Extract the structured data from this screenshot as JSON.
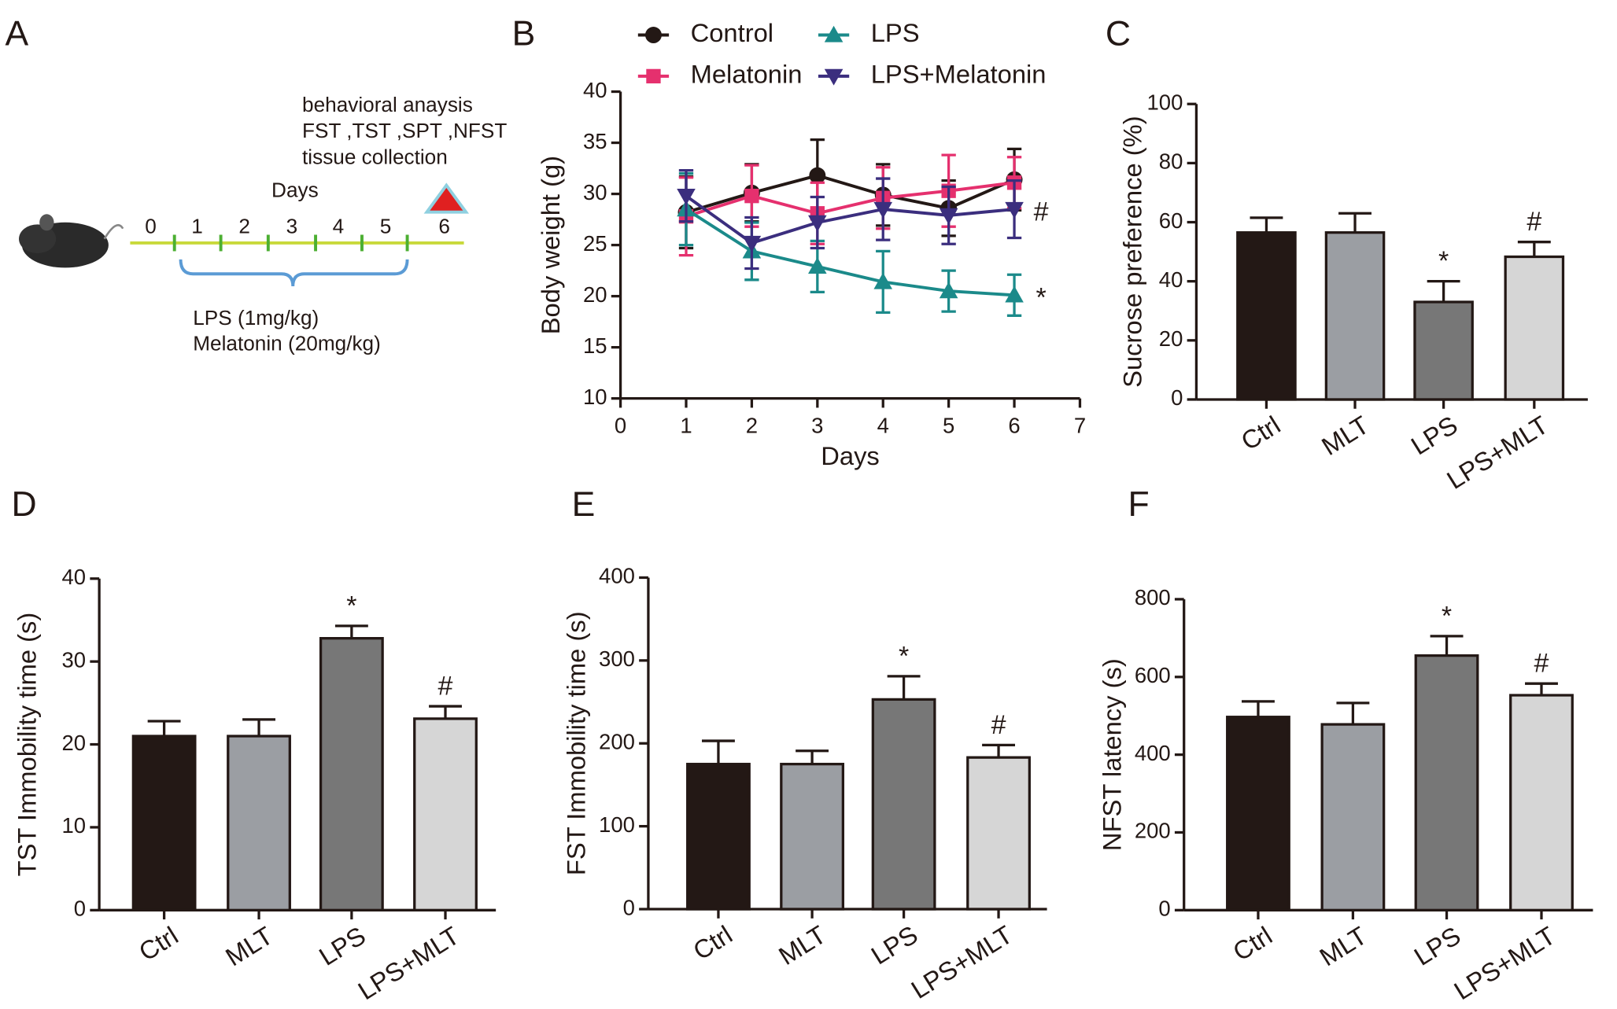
{
  "schematic": {
    "panel": "A",
    "notes": [
      "behavioral anaysis",
      "FST ,TST ,SPT ,NFST",
      "tissue collection"
    ],
    "axis_label": "Days",
    "day_ticks": [
      0,
      1,
      2,
      3,
      4,
      5,
      6
    ],
    "treatment": [
      "LPS (1mg/kg)",
      "Melatonin (20mg/kg)"
    ]
  },
  "chart_data": [
    {
      "type": "line",
      "panel": "B",
      "x_label": "Days",
      "y_label": "Body weight (g)",
      "xlim": [
        0,
        7
      ],
      "xticks": [
        0,
        1,
        2,
        3,
        4,
        5,
        6,
        7
      ],
      "ylim": [
        10,
        40
      ],
      "yticks": [
        10,
        15,
        20,
        25,
        30,
        35,
        40
      ],
      "legend": "top",
      "x": [
        1,
        2,
        3,
        4,
        5,
        6
      ],
      "series": [
        {
          "name": "Control",
          "color": "#231815",
          "marker": "circle",
          "values": [
            28.2,
            30.1,
            31.8,
            29.9,
            28.6,
            31.4
          ],
          "errors": [
            3.5,
            2.8,
            3.5,
            3.0,
            2.7,
            3.0
          ]
        },
        {
          "name": "Melatonin",
          "color": "#e5306e",
          "marker": "square",
          "values": [
            27.8,
            29.8,
            28.1,
            29.6,
            30.3,
            31.1
          ],
          "errors": [
            3.8,
            3.0,
            3.0,
            3.0,
            3.5,
            2.5
          ]
        },
        {
          "name": "LPS",
          "color": "#1b8a8a",
          "marker": "triangle-up",
          "values": [
            28.5,
            24.4,
            22.9,
            21.4,
            20.5,
            20.1
          ],
          "errors": [
            3.5,
            2.8,
            2.5,
            3.0,
            2.0,
            2.0
          ],
          "end_label": "*"
        },
        {
          "name": "LPS+Melatonin",
          "color": "#3b2e7e",
          "marker": "triangle-down",
          "values": [
            29.8,
            25.2,
            27.2,
            28.5,
            27.9,
            28.5
          ],
          "errors": [
            2.5,
            2.5,
            2.5,
            3.0,
            2.8,
            2.8
          ],
          "end_label": "#"
        }
      ]
    },
    {
      "type": "bar",
      "panel": "C",
      "y_label": "Sucrose preference (%)",
      "ylim": [
        0,
        100
      ],
      "yticks": [
        0,
        20,
        40,
        60,
        80,
        100
      ],
      "categories": [
        "Ctrl",
        "MLT",
        "LPS",
        "LPS+MLT"
      ],
      "colors": [
        "#231815",
        "#9b9ea3",
        "#777777",
        "#d6d6d6"
      ],
      "values": [
        56.5,
        56.5,
        33,
        48.3
      ],
      "errors": [
        5,
        6.5,
        7,
        5
      ],
      "marks": [
        null,
        null,
        "*",
        "#"
      ]
    },
    {
      "type": "bar",
      "panel": "D",
      "y_label": "TST Immobility time (s)",
      "ylim": [
        0,
        40
      ],
      "yticks": [
        0,
        10,
        20,
        30,
        40
      ],
      "categories": [
        "Ctrl",
        "MLT",
        "LPS",
        "LPS+MLT"
      ],
      "colors": [
        "#231815",
        "#9b9ea3",
        "#777777",
        "#d6d6d6"
      ],
      "values": [
        21,
        21,
        32.8,
        23.1
      ],
      "errors": [
        1.8,
        2.0,
        1.5,
        1.5
      ],
      "marks": [
        null,
        null,
        "*",
        "#"
      ]
    },
    {
      "type": "bar",
      "panel": "E",
      "y_label": "FST Immobility time (s)",
      "ylim": [
        0,
        400
      ],
      "yticks": [
        0,
        100,
        200,
        300,
        400
      ],
      "categories": [
        "Ctrl",
        "MLT",
        "LPS",
        "LPS+MLT"
      ],
      "colors": [
        "#231815",
        "#9b9ea3",
        "#777777",
        "#d6d6d6"
      ],
      "values": [
        175,
        175,
        253,
        183
      ],
      "errors": [
        28,
        16,
        28,
        15
      ],
      "marks": [
        null,
        null,
        "*",
        "#"
      ]
    },
    {
      "type": "bar",
      "panel": "F",
      "y_label": "NFST latency (s)",
      "ylim": [
        0,
        800
      ],
      "yticks": [
        0,
        200,
        400,
        600,
        800
      ],
      "categories": [
        "Ctrl",
        "MLT",
        "LPS",
        "LPS+MLT"
      ],
      "colors": [
        "#231815",
        "#9b9ea3",
        "#777777",
        "#d6d6d6"
      ],
      "values": [
        497,
        478,
        655,
        553
      ],
      "errors": [
        40,
        55,
        50,
        30
      ],
      "marks": [
        null,
        null,
        "*",
        "#"
      ]
    }
  ]
}
